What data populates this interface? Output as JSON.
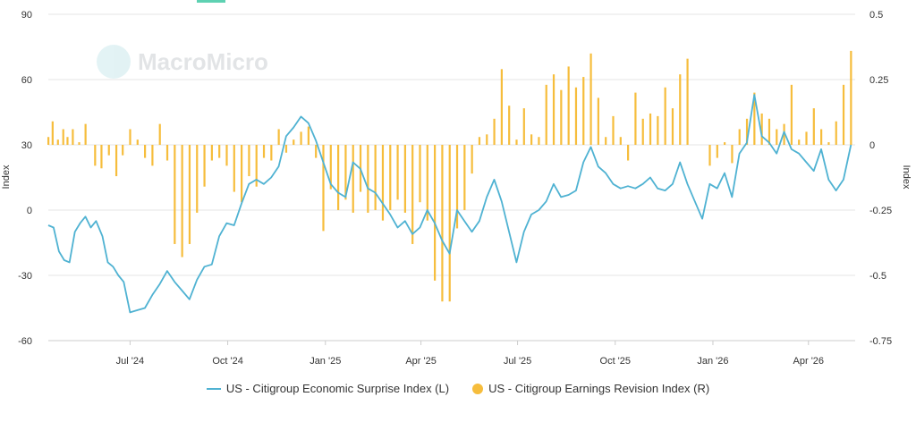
{
  "watermark": {
    "text": "MacroMicro"
  },
  "legend": {
    "items": [
      {
        "label": "US - Citigroup Economic Surprise Index (L)",
        "color": "#4fb2d2",
        "shape": "line"
      },
      {
        "label": "US - Citigroup Earnings Revision Index (R)",
        "color": "#f6bd3c",
        "shape": "dot"
      }
    ]
  },
  "chart_data": {
    "type": "bar+line",
    "title": "",
    "y_left": {
      "label": "Index",
      "ticks": [
        90,
        60,
        30,
        0,
        -30,
        -60
      ],
      "range": [
        -60,
        90
      ]
    },
    "y_right": {
      "label": "Index",
      "ticks": [
        "0.5",
        "0.25",
        "0",
        "-0.25",
        "-0.5",
        "-0.75"
      ],
      "range": [
        -0.75,
        0.5
      ]
    },
    "x_ticks": [
      "Jul '24",
      "Oct '24",
      "Jan '25",
      "Apr '25",
      "Jul '25",
      "Oct '25",
      "Jan '26",
      "Apr '26"
    ],
    "x_range": [
      "2024-04-15",
      "2026-05-15"
    ],
    "grid": "horizontal",
    "series": [
      {
        "name": "US - Citigroup Economic Surprise Index (L)",
        "axis": "left",
        "type": "line",
        "color": "#4fb2d2",
        "points": [
          [
            "2024-04-15",
            -7
          ],
          [
            "2024-04-20",
            -8
          ],
          [
            "2024-04-25",
            -19
          ],
          [
            "2024-04-30",
            -23
          ],
          [
            "2024-05-05",
            -24
          ],
          [
            "2024-05-10",
            -10
          ],
          [
            "2024-05-15",
            -6
          ],
          [
            "2024-05-20",
            -3
          ],
          [
            "2024-05-25",
            -8
          ],
          [
            "2024-05-30",
            -5
          ],
          [
            "2024-06-05",
            -12
          ],
          [
            "2024-06-10",
            -24
          ],
          [
            "2024-06-15",
            -26
          ],
          [
            "2024-06-20",
            -30
          ],
          [
            "2024-06-25",
            -33
          ],
          [
            "2024-07-01",
            -47
          ],
          [
            "2024-07-08",
            -46
          ],
          [
            "2024-07-15",
            -45
          ],
          [
            "2024-07-22",
            -39
          ],
          [
            "2024-07-29",
            -34
          ],
          [
            "2024-08-05",
            -28
          ],
          [
            "2024-08-12",
            -33
          ],
          [
            "2024-08-19",
            -37
          ],
          [
            "2024-08-26",
            -41
          ],
          [
            "2024-09-02",
            -32
          ],
          [
            "2024-09-09",
            -26
          ],
          [
            "2024-09-16",
            -25
          ],
          [
            "2024-09-23",
            -12
          ],
          [
            "2024-09-30",
            -6
          ],
          [
            "2024-10-07",
            -7
          ],
          [
            "2024-10-14",
            3
          ],
          [
            "2024-10-21",
            12
          ],
          [
            "2024-10-28",
            14
          ],
          [
            "2024-11-04",
            12
          ],
          [
            "2024-11-11",
            15
          ],
          [
            "2024-11-18",
            20
          ],
          [
            "2024-11-25",
            34
          ],
          [
            "2024-12-02",
            38
          ],
          [
            "2024-12-09",
            43
          ],
          [
            "2024-12-16",
            40
          ],
          [
            "2024-12-23",
            32
          ],
          [
            "2024-12-30",
            22
          ],
          [
            "2025-01-06",
            12
          ],
          [
            "2025-01-13",
            8
          ],
          [
            "2025-01-20",
            6
          ],
          [
            "2025-01-27",
            22
          ],
          [
            "2025-02-03",
            19
          ],
          [
            "2025-02-10",
            10
          ],
          [
            "2025-02-17",
            8
          ],
          [
            "2025-02-24",
            3
          ],
          [
            "2025-03-03",
            -2
          ],
          [
            "2025-03-10",
            -8
          ],
          [
            "2025-03-17",
            -5
          ],
          [
            "2025-03-24",
            -11
          ],
          [
            "2025-03-31",
            -8
          ],
          [
            "2025-04-07",
            0
          ],
          [
            "2025-04-14",
            -6
          ],
          [
            "2025-04-21",
            -14
          ],
          [
            "2025-04-28",
            -20
          ],
          [
            "2025-05-05",
            0
          ],
          [
            "2025-05-12",
            -5
          ],
          [
            "2025-05-19",
            -10
          ],
          [
            "2025-05-26",
            -5
          ],
          [
            "2025-06-02",
            6
          ],
          [
            "2025-06-09",
            14
          ],
          [
            "2025-06-16",
            4
          ],
          [
            "2025-06-23",
            -10
          ],
          [
            "2025-06-30",
            -24
          ],
          [
            "2025-07-07",
            -10
          ],
          [
            "2025-07-14",
            -2
          ],
          [
            "2025-07-21",
            0
          ],
          [
            "2025-07-28",
            4
          ],
          [
            "2025-08-04",
            12
          ],
          [
            "2025-08-11",
            6
          ],
          [
            "2025-08-18",
            7
          ],
          [
            "2025-08-25",
            9
          ],
          [
            "2025-09-01",
            22
          ],
          [
            "2025-09-08",
            29
          ],
          [
            "2025-09-15",
            20
          ],
          [
            "2025-09-22",
            17
          ],
          [
            "2025-09-29",
            12
          ],
          [
            "2025-10-06",
            10
          ],
          [
            "2025-10-13",
            11
          ],
          [
            "2025-10-20",
            10
          ],
          [
            "2025-10-27",
            12
          ],
          [
            "2025-11-03",
            15
          ],
          [
            "2025-11-10",
            10
          ],
          [
            "2025-11-17",
            9
          ],
          [
            "2025-11-24",
            12
          ],
          [
            "2025-12-01",
            22
          ],
          [
            "2025-12-08",
            12
          ],
          [
            "2025-12-15",
            4
          ],
          [
            "2025-12-22",
            -4
          ],
          [
            "2025-12-29",
            12
          ],
          [
            "2026-01-05",
            10
          ],
          [
            "2026-01-12",
            17
          ],
          [
            "2026-01-19",
            6
          ],
          [
            "2026-01-26",
            26
          ],
          [
            "2026-02-02",
            31
          ],
          [
            "2026-02-09",
            53
          ],
          [
            "2026-02-16",
            34
          ],
          [
            "2026-02-23",
            31
          ],
          [
            "2026-03-02",
            26
          ],
          [
            "2026-03-09",
            36
          ],
          [
            "2026-03-16",
            28
          ],
          [
            "2026-03-23",
            26
          ],
          [
            "2026-03-30",
            22
          ],
          [
            "2026-04-06",
            18
          ],
          [
            "2026-04-13",
            28
          ],
          [
            "2026-04-20",
            14
          ],
          [
            "2026-04-27",
            9
          ],
          [
            "2026-05-04",
            14
          ],
          [
            "2026-05-11",
            30
          ]
        ]
      },
      {
        "name": "US - Citigroup Earnings Revision Index (R)",
        "axis": "right",
        "type": "bar",
        "color": "#f6bd3c",
        "points": [
          [
            "2024-04-15",
            0.03
          ],
          [
            "2024-04-19",
            0.09
          ],
          [
            "2024-04-24",
            0.02
          ],
          [
            "2024-04-29",
            0.06
          ],
          [
            "2024-05-03",
            0.03
          ],
          [
            "2024-05-08",
            0.06
          ],
          [
            "2024-05-14",
            0.01
          ],
          [
            "2024-05-20",
            0.08
          ],
          [
            "2024-05-29",
            -0.08
          ],
          [
            "2024-06-04",
            -0.09
          ],
          [
            "2024-06-11",
            -0.04
          ],
          [
            "2024-06-18",
            -0.12
          ],
          [
            "2024-06-24",
            -0.04
          ],
          [
            "2024-07-01",
            0.06
          ],
          [
            "2024-07-08",
            0.02
          ],
          [
            "2024-07-15",
            -0.05
          ],
          [
            "2024-07-22",
            -0.08
          ],
          [
            "2024-07-29",
            0.08
          ],
          [
            "2024-08-05",
            -0.06
          ],
          [
            "2024-08-12",
            -0.38
          ],
          [
            "2024-08-19",
            -0.43
          ],
          [
            "2024-08-26",
            -0.38
          ],
          [
            "2024-09-02",
            -0.26
          ],
          [
            "2024-09-09",
            -0.16
          ],
          [
            "2024-09-16",
            -0.06
          ],
          [
            "2024-09-23",
            -0.05
          ],
          [
            "2024-09-30",
            -0.08
          ],
          [
            "2024-10-07",
            -0.18
          ],
          [
            "2024-10-14",
            -0.22
          ],
          [
            "2024-10-21",
            -0.12
          ],
          [
            "2024-10-28",
            -0.16
          ],
          [
            "2024-11-04",
            -0.05
          ],
          [
            "2024-11-11",
            -0.06
          ],
          [
            "2024-11-18",
            0.06
          ],
          [
            "2024-11-25",
            -0.03
          ],
          [
            "2024-12-02",
            0.02
          ],
          [
            "2024-12-09",
            0.05
          ],
          [
            "2024-12-16",
            0.07
          ],
          [
            "2024-12-23",
            -0.05
          ],
          [
            "2024-12-30",
            -0.33
          ],
          [
            "2025-01-06",
            -0.17
          ],
          [
            "2025-01-13",
            -0.25
          ],
          [
            "2025-01-20",
            -0.21
          ],
          [
            "2025-01-27",
            -0.26
          ],
          [
            "2025-02-03",
            -0.18
          ],
          [
            "2025-02-10",
            -0.26
          ],
          [
            "2025-02-17",
            -0.25
          ],
          [
            "2025-02-24",
            -0.29
          ],
          [
            "2025-03-03",
            -0.25
          ],
          [
            "2025-03-10",
            -0.21
          ],
          [
            "2025-03-17",
            -0.26
          ],
          [
            "2025-03-24",
            -0.38
          ],
          [
            "2025-03-31",
            -0.22
          ],
          [
            "2025-04-07",
            -0.29
          ],
          [
            "2025-04-14",
            -0.52
          ],
          [
            "2025-04-21",
            -0.6
          ],
          [
            "2025-04-28",
            -0.6
          ],
          [
            "2025-05-05",
            -0.32
          ],
          [
            "2025-05-12",
            -0.25
          ],
          [
            "2025-05-19",
            -0.11
          ],
          [
            "2025-05-26",
            0.03
          ],
          [
            "2025-06-02",
            0.04
          ],
          [
            "2025-06-09",
            0.1
          ],
          [
            "2025-06-16",
            0.29
          ],
          [
            "2025-06-23",
            0.15
          ],
          [
            "2025-06-30",
            0.02
          ],
          [
            "2025-07-07",
            0.14
          ],
          [
            "2025-07-14",
            0.04
          ],
          [
            "2025-07-21",
            0.03
          ],
          [
            "2025-07-28",
            0.23
          ],
          [
            "2025-08-04",
            0.27
          ],
          [
            "2025-08-11",
            0.21
          ],
          [
            "2025-08-18",
            0.3
          ],
          [
            "2025-08-25",
            0.22
          ],
          [
            "2025-09-01",
            0.26
          ],
          [
            "2025-09-08",
            0.35
          ],
          [
            "2025-09-15",
            0.18
          ],
          [
            "2025-09-22",
            0.03
          ],
          [
            "2025-09-29",
            0.11
          ],
          [
            "2025-10-06",
            0.03
          ],
          [
            "2025-10-13",
            -0.06
          ],
          [
            "2025-10-20",
            0.2
          ],
          [
            "2025-10-27",
            0.1
          ],
          [
            "2025-11-03",
            0.12
          ],
          [
            "2025-11-10",
            0.11
          ],
          [
            "2025-11-17",
            0.22
          ],
          [
            "2025-11-24",
            0.14
          ],
          [
            "2025-12-01",
            0.27
          ],
          [
            "2025-12-08",
            0.33
          ],
          [
            "2025-12-29",
            -0.08
          ],
          [
            "2026-01-05",
            -0.05
          ],
          [
            "2026-01-12",
            0.01
          ],
          [
            "2026-01-19",
            -0.07
          ],
          [
            "2026-01-26",
            0.06
          ],
          [
            "2026-02-02",
            0.1
          ],
          [
            "2026-02-09",
            0.2
          ],
          [
            "2026-02-16",
            0.12
          ],
          [
            "2026-02-23",
            0.1
          ],
          [
            "2026-03-02",
            0.06
          ],
          [
            "2026-03-09",
            0.08
          ],
          [
            "2026-03-16",
            0.23
          ],
          [
            "2026-03-23",
            0.02
          ],
          [
            "2026-03-30",
            0.05
          ],
          [
            "2026-04-06",
            0.14
          ],
          [
            "2026-04-13",
            0.06
          ],
          [
            "2026-04-20",
            0.01
          ],
          [
            "2026-04-27",
            0.09
          ],
          [
            "2026-05-04",
            0.23
          ],
          [
            "2026-05-11",
            0.36
          ]
        ]
      }
    ]
  }
}
